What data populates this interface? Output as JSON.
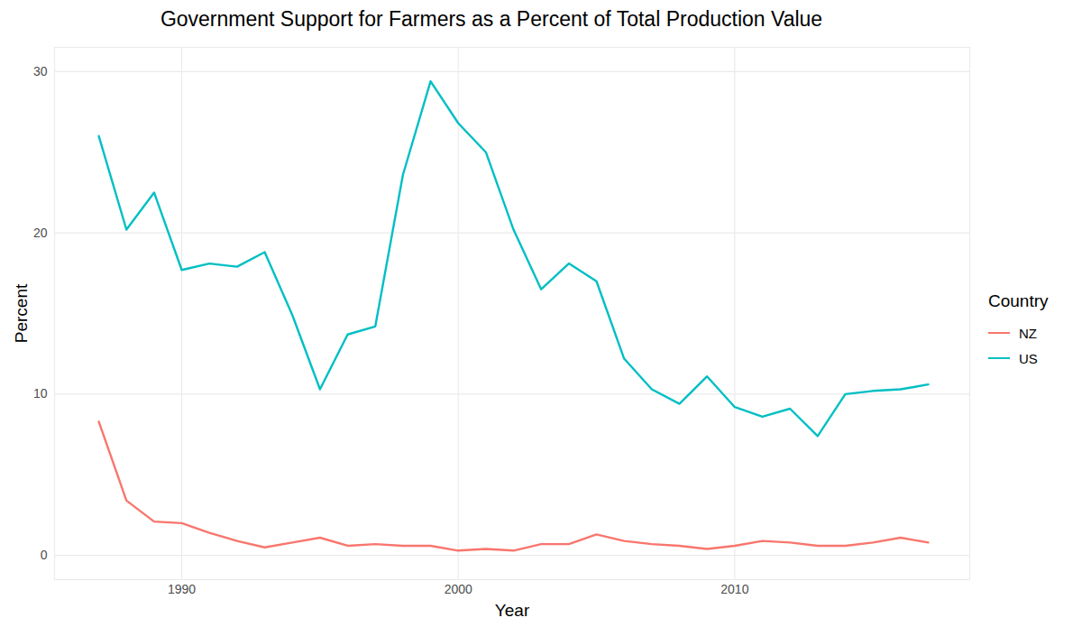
{
  "chart_data": {
    "type": "line",
    "title": "Government Support for Farmers as a Percent of Total Production Value",
    "x_label": "Year",
    "y_label": "Percent",
    "legend_title": "Country",
    "legend": "right",
    "grid": true,
    "x": [
      1987,
      1988,
      1989,
      1990,
      1991,
      1992,
      1993,
      1994,
      1995,
      1996,
      1997,
      1998,
      1999,
      2000,
      2001,
      2002,
      2003,
      2004,
      2005,
      2006,
      2007,
      2008,
      2009,
      2010,
      2011,
      2012,
      2013,
      2014,
      2015,
      2016,
      2017
    ],
    "series": [
      {
        "name": "NZ",
        "color": "#F8766D",
        "values": [
          8.3,
          3.4,
          2.1,
          2.0,
          1.4,
          0.9,
          0.5,
          0.8,
          1.1,
          0.6,
          0.7,
          0.6,
          0.6,
          0.3,
          0.4,
          0.3,
          0.7,
          0.7,
          1.3,
          0.9,
          0.7,
          0.6,
          0.4,
          0.6,
          0.9,
          0.8,
          0.6,
          0.6,
          0.8,
          1.1,
          0.8
        ]
      },
      {
        "name": "US",
        "color": "#00BFC4",
        "values": [
          26.0,
          20.2,
          22.5,
          17.7,
          18.1,
          17.9,
          18.8,
          14.9,
          10.3,
          13.7,
          14.2,
          23.6,
          29.4,
          26.8,
          25.0,
          20.2,
          16.5,
          18.1,
          17.0,
          12.2,
          10.3,
          9.4,
          11.1,
          9.2,
          8.6,
          9.1,
          7.4,
          10.0,
          10.2,
          10.3,
          10.6
        ]
      }
    ],
    "xlim": [
      1985.4,
      2018.5
    ],
    "xticks": [
      1990,
      2000,
      2010
    ],
    "ylim": [
      -1.5,
      31.5
    ],
    "yticks": [
      0,
      10,
      20,
      30
    ]
  }
}
